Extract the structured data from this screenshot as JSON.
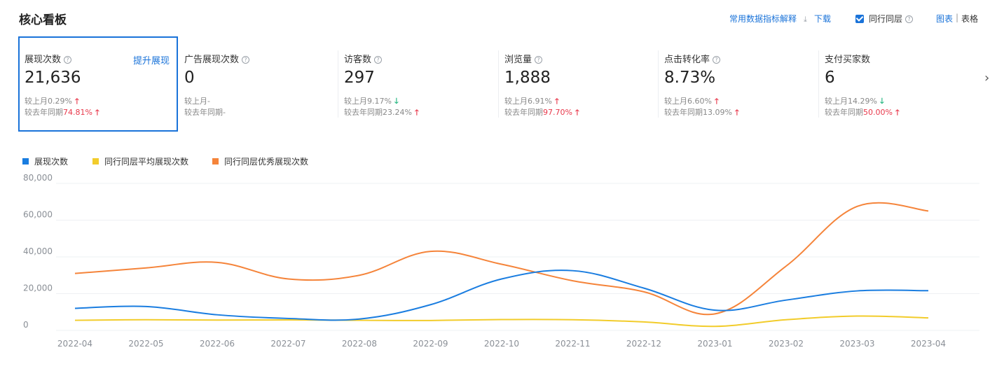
{
  "page_title": "核心看板",
  "toolbar": {
    "explain_label": "常用数据指标解释",
    "download_label": "下载",
    "peer_label": "同行同层",
    "chart_label": "图表",
    "separator": "|",
    "table_label": "表格"
  },
  "metrics": [
    {
      "label": "展现次数",
      "value": "21,636",
      "boost": "提升展现",
      "m_text": "较上月0.29%",
      "m_dir": "up",
      "y_prefix": "较去年同期",
      "y_val": "74.81%",
      "y_dir": "up"
    },
    {
      "label": "广告展现次数",
      "value": "0",
      "m_text": "较上月-",
      "m_dir": "",
      "y_prefix": "较去年同期-",
      "y_val": "",
      "y_dir": ""
    },
    {
      "label": "访客数",
      "value": "297",
      "m_text": "较上月9.17%",
      "m_dir": "down",
      "y_prefix": "较去年同期23.24%",
      "y_val": "",
      "y_dir": "up"
    },
    {
      "label": "浏览量",
      "value": "1,888",
      "m_text": "较上月6.91%",
      "m_dir": "up",
      "y_prefix": "较去年同期",
      "y_val": "97.70%",
      "y_dir": "up"
    },
    {
      "label": "点击转化率",
      "value": "8.73%",
      "m_text": "较上月6.60%",
      "m_dir": "up",
      "y_prefix": "较去年同期13.09%",
      "y_val": "",
      "y_dir": "up"
    },
    {
      "label": "支付买家数",
      "value": "6",
      "m_text": "较上月14.29%",
      "m_dir": "down",
      "y_prefix": "较去年同期",
      "y_val": "50.00%",
      "y_dir": "up"
    }
  ],
  "colors": {
    "blue": "#1a7de0",
    "yellow": "#f2cc2b",
    "orange": "#f5843a",
    "up": "#e8374a",
    "down": "#1fb57d"
  },
  "chart_data": {
    "type": "line",
    "categories": [
      "2022-04",
      "2022-05",
      "2022-06",
      "2022-07",
      "2022-08",
      "2022-09",
      "2022-10",
      "2022-11",
      "2022-12",
      "2023-01",
      "2023-02",
      "2023-03",
      "2023-04"
    ],
    "ylim": [
      0,
      80000
    ],
    "yticks": [
      "0",
      "20,000",
      "40,000",
      "60,000",
      "80,000"
    ],
    "series": [
      {
        "name": "展现次数",
        "color": "#1a7de0",
        "values": [
          12000,
          13000,
          8500,
          6500,
          6200,
          14000,
          28000,
          32500,
          23000,
          11000,
          16500,
          21500,
          21600
        ]
      },
      {
        "name": "同行同层平均展现次数",
        "color": "#f2cc2b",
        "values": [
          5500,
          5800,
          5600,
          5700,
          5500,
          5400,
          5900,
          5800,
          4600,
          2200,
          5800,
          7800,
          6800
        ]
      },
      {
        "name": "同行同层优秀展现次数",
        "color": "#f5843a",
        "values": [
          31000,
          34000,
          37000,
          28000,
          30000,
          43000,
          36000,
          27000,
          21000,
          9000,
          35000,
          67500,
          65000
        ]
      }
    ]
  }
}
